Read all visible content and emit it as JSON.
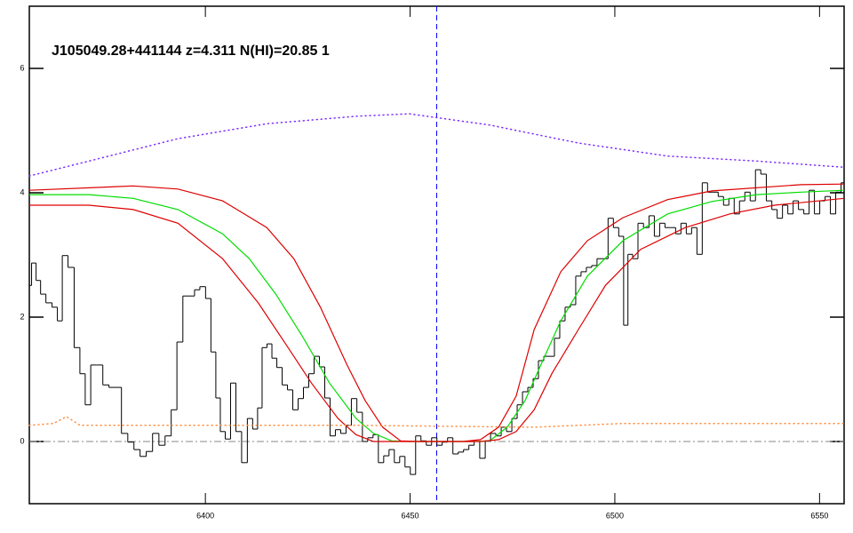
{
  "chart_data": {
    "type": "spectrum",
    "title": "J105049.28+441144 z=4.311 N(HI)=20.85 1",
    "xlim": [
      6357,
      6556
    ],
    "ylim": [
      -1,
      7
    ],
    "xticks": [
      6400,
      6450,
      6500,
      6550
    ],
    "yticks": [
      0,
      2,
      4,
      6
    ],
    "reference_lines": [
      {
        "axis": "x",
        "value": 6456.5,
        "color": "#0000ff",
        "dash": "dashed"
      },
      {
        "axis": "y",
        "value": 0,
        "color": "#888888",
        "dash": "dashdot"
      }
    ],
    "series": [
      {
        "style": "steps",
        "color": "#000000",
        "x": [
          6357.0,
          6358.1,
          6359.2,
          6360.3,
          6361.8,
          6363.3,
          6364.4,
          6365.7,
          6367.2,
          6368.7,
          6370.0,
          6371.3,
          6372.7,
          6374.2,
          6375.7,
          6377.2,
          6378.7,
          6380.3,
          6381.8,
          6383.3,
          6384.8,
          6386.3,
          6387.9,
          6389.4,
          6390.9,
          6392.4,
          6393.7,
          6395.3,
          6396.8,
          6397.9,
          6399.4,
          6400.7,
          6402.0,
          6403.1,
          6404.2,
          6405.5,
          6406.8,
          6408.1,
          6409.6,
          6410.9,
          6412.2,
          6413.3,
          6414.4,
          6415.7,
          6416.8,
          6418.1,
          6419.4,
          6420.7,
          6422.0,
          6423.3,
          6424.6,
          6425.9,
          6427.2,
          6428.5,
          6429.8,
          6431.1,
          6432.4,
          6433.7,
          6435.0,
          6436.3,
          6437.7,
          6439.0,
          6440.3,
          6441.6,
          6442.9,
          6444.2,
          6445.5,
          6446.8,
          6448.1,
          6449.4,
          6450.7,
          6452.0,
          6453.3,
          6454.6,
          6455.9,
          6457.2,
          6458.5,
          6459.8,
          6461.1,
          6462.4,
          6463.7,
          6465.0,
          6466.3,
          6467.7,
          6469.0,
          6470.3,
          6471.6,
          6472.9,
          6474.2,
          6475.5,
          6476.8,
          6478.1,
          6479.4,
          6480.7,
          6482.0,
          6483.3,
          6484.6,
          6485.9,
          6487.2,
          6488.5,
          6489.8,
          6491.1,
          6492.4,
          6493.7,
          6495.0,
          6496.3,
          6497.7,
          6499.0,
          6500.3,
          6501.6,
          6502.7,
          6503.7,
          6505.0,
          6506.3,
          6507.7,
          6509.0,
          6510.3,
          6511.6,
          6512.9,
          6514.2,
          6515.5,
          6516.8,
          6518.1,
          6519.4,
          6520.7,
          6522.0,
          6523.3,
          6524.6,
          6525.9,
          6527.2,
          6528.5,
          6529.8,
          6531.1,
          6532.4,
          6533.7,
          6535.0,
          6536.3,
          6537.7,
          6539.0,
          6540.3,
          6541.6,
          6542.9,
          6544.2,
          6545.5,
          6546.8,
          6548.1,
          6549.4,
          6550.7,
          6552.0,
          6553.3,
          6554.6,
          6555.9
        ],
        "values": [
          2.51,
          2.87,
          2.59,
          2.37,
          2.23,
          2.16,
          1.94,
          2.99,
          2.8,
          1.51,
          1.09,
          0.59,
          1.23,
          1.23,
          0.91,
          0.87,
          0.87,
          0.13,
          -0.01,
          -0.13,
          -0.24,
          -0.16,
          0.13,
          -0.06,
          0.09,
          0.51,
          1.6,
          2.34,
          2.34,
          2.44,
          2.49,
          2.3,
          1.44,
          0.7,
          0.16,
          0.04,
          0.94,
          0.16,
          -0.34,
          0.37,
          0.2,
          0.54,
          1.51,
          1.57,
          1.34,
          1.19,
          0.91,
          0.83,
          0.51,
          0.69,
          0.87,
          1.09,
          1.37,
          1.2,
          0.7,
          0.09,
          0.19,
          0.13,
          0.26,
          0.69,
          0.47,
          0,
          0.06,
          0.11,
          -0.34,
          -0.23,
          -0.13,
          -0.34,
          -0.24,
          -0.41,
          -0.53,
          0.09,
          0.01,
          -0.06,
          0.06,
          -0.06,
          -0.01,
          0.06,
          -0.2,
          -0.17,
          -0.13,
          -0.06,
          0,
          -0.27,
          0.01,
          0.13,
          0.09,
          0.23,
          0.16,
          0.37,
          0.59,
          0.8,
          0.87,
          1.01,
          1.3,
          1.37,
          1.37,
          1.66,
          1.94,
          2.16,
          2.2,
          2.66,
          2.73,
          2.8,
          2.83,
          2.94,
          2.94,
          3.59,
          3.44,
          3.3,
          1.87,
          3.01,
          2.94,
          3.51,
          3.44,
          3.63,
          3.3,
          3.51,
          3.44,
          3.44,
          3.34,
          3.51,
          3.34,
          3.44,
          3.01,
          4.16,
          4.01,
          4.01,
          3.94,
          3.8,
          3.91,
          3.66,
          3.87,
          4.01,
          3.87,
          4.37,
          4.3,
          3.87,
          3.73,
          3.59,
          3.8,
          3.66,
          3.87,
          3.73,
          3.66,
          4.04,
          3.66,
          3.87,
          3.94,
          3.66,
          4.01,
          4.16
        ]
      },
      {
        "style": "line",
        "color": "#00dd00",
        "x": [
          6357,
          6371.6,
          6382.4,
          6393.3,
          6404.2,
          6410.7,
          6417.2,
          6423.7,
          6430.3,
          6436.8,
          6441.1,
          6445.5,
          6449.8,
          6465.0,
          6469.4,
          6473.7,
          6478.1,
          6482.4,
          6486.8,
          6493.3,
          6502.0,
          6512.9,
          6523.7,
          6534.6,
          6545.5,
          6556
        ],
        "values": [
          3.97,
          3.97,
          3.91,
          3.73,
          3.34,
          2.94,
          2.37,
          1.69,
          0.94,
          0.37,
          0.13,
          0.01,
          0,
          0,
          0.01,
          0.23,
          0.66,
          1.3,
          1.94,
          2.66,
          3.23,
          3.66,
          3.86,
          3.97,
          4.01,
          4.04
        ]
      },
      {
        "style": "line",
        "color": "#dd0000",
        "x": [
          6357,
          6382.4,
          6393.3,
          6404.2,
          6415.0,
          6421.6,
          6428.1,
          6434.6,
          6439.0,
          6443.3,
          6447.7,
          6452.0,
          6462.9,
          6467.2,
          6471.6,
          6475.9,
          6480.3,
          6486.8,
          6493.3,
          6502.0,
          6512.9,
          6523.7,
          6545.5,
          6556
        ],
        "values": [
          4.04,
          4.11,
          4.06,
          3.87,
          3.44,
          2.94,
          2.16,
          1.23,
          0.66,
          0.23,
          0.01,
          0,
          0,
          0.03,
          0.23,
          0.73,
          1.8,
          2.73,
          3.23,
          3.6,
          3.89,
          4.03,
          4.13,
          4.14
        ]
      },
      {
        "style": "line",
        "color": "#dd0000",
        "x": [
          6357,
          6371.6,
          6382.4,
          6393.3,
          6404.2,
          6412.9,
          6419.4,
          6425.9,
          6432.4,
          6436.8,
          6441.1,
          6467.2,
          6471.6,
          6475.9,
          6480.3,
          6484.6,
          6491.1,
          6497.7,
          6506.3,
          6517.2,
          6528.1,
          6539.0,
          6556
        ],
        "values": [
          3.8,
          3.8,
          3.73,
          3.51,
          2.94,
          2.23,
          1.59,
          0.94,
          0.37,
          0.11,
          0,
          0,
          0.03,
          0.16,
          0.51,
          1.09,
          1.8,
          2.51,
          3.09,
          3.44,
          3.66,
          3.8,
          3.91
        ]
      },
      {
        "style": "dotted",
        "color": "#7b2cff",
        "x": [
          6357,
          6371.6,
          6393.3,
          6415.0,
          6436.8,
          6449.8,
          6469.4,
          6491.1,
          6512.9,
          6534.6,
          6556
        ],
        "values": [
          4.27,
          4.51,
          4.87,
          5.11,
          5.23,
          5.27,
          5.09,
          4.8,
          4.59,
          4.51,
          4.41
        ]
      },
      {
        "style": "dotted",
        "color": "#ff8c3c",
        "x": [
          6357,
          6362.9,
          6366.1,
          6369.4,
          6436.8,
          6480.3,
          6502.0,
          6556
        ],
        "values": [
          0.26,
          0.29,
          0.4,
          0.26,
          0.26,
          0.23,
          0.29,
          0.29
        ]
      }
    ]
  }
}
